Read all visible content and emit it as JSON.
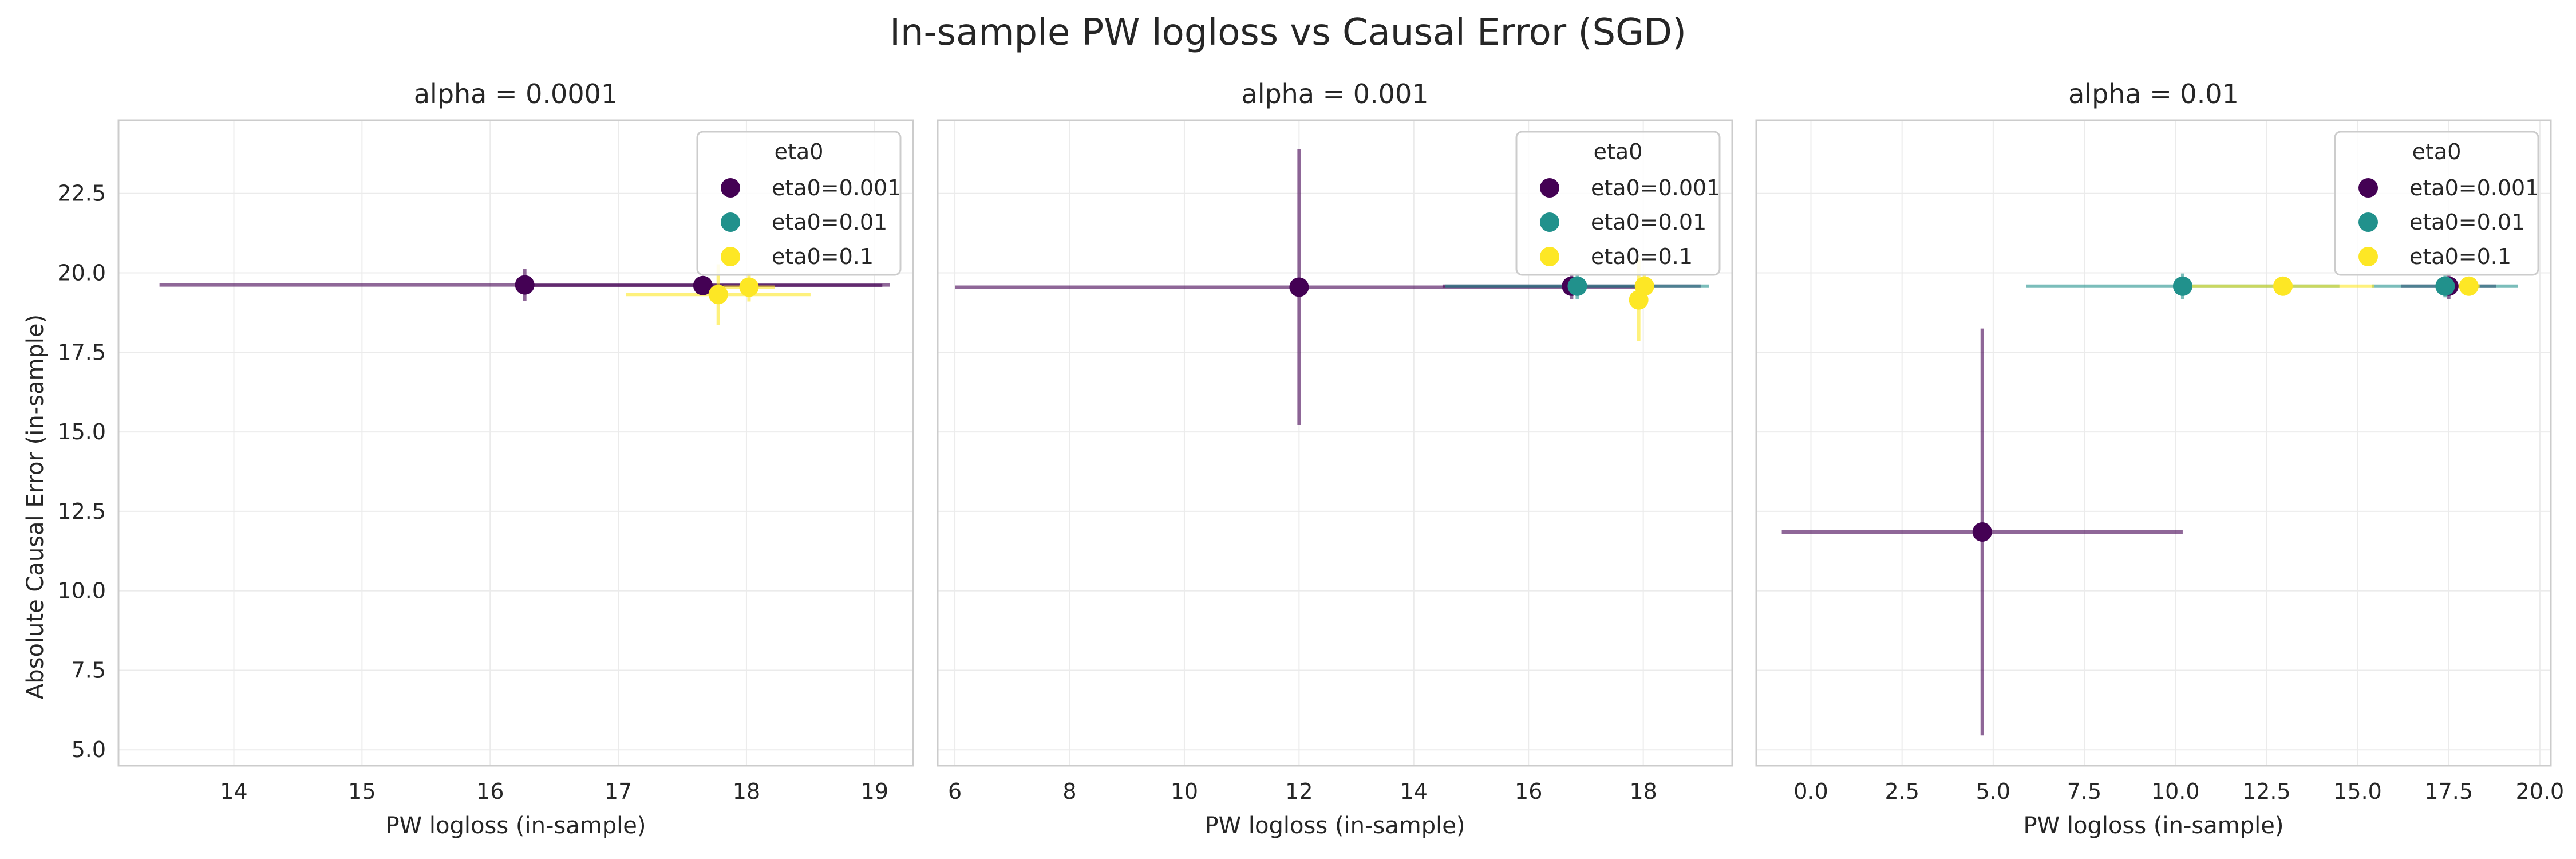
{
  "figure": {
    "title": "In-sample PW logloss vs Causal Error (SGD)",
    "ylabel": "Absolute Causal Error (in-sample)"
  },
  "colors": {
    "eta0=0.001": "#440154",
    "eta0=0.01": "#21918c",
    "eta0=0.1": "#fde725",
    "grid": "#ebebeb",
    "spine": "#cccccc"
  },
  "chart_data": [
    {
      "type": "scatter",
      "title": "alpha = 0.0001",
      "xlabel": "PW logloss (in-sample)",
      "ylabel": "Absolute Causal Error (in-sample)",
      "xlim": [
        13.1,
        19.3
      ],
      "ylim": [
        4.5,
        24.8
      ],
      "xticks": [
        14,
        15,
        16,
        17,
        18,
        19
      ],
      "xtick_labels": [
        "14",
        "15",
        "16",
        "17",
        "18",
        "19"
      ],
      "yticks": [
        5.0,
        7.5,
        10.0,
        12.5,
        15.0,
        17.5,
        20.0,
        22.5
      ],
      "ytick_labels": [
        "5.0",
        "7.5",
        "10.0",
        "12.5",
        "15.0",
        "17.5",
        "20.0",
        "22.5"
      ],
      "grid": true,
      "legend": {
        "title": "eta0",
        "position": "top-right"
      },
      "series": [
        {
          "name": "eta0=0.001",
          "points": [
            {
              "x": 16.27,
              "y": 19.62,
              "xerr": 2.85,
              "yerr": 0.5
            },
            {
              "x": 17.66,
              "y": 19.6,
              "xerr": 1.4,
              "yerr": 0.3
            }
          ]
        },
        {
          "name": "eta0=0.01",
          "points": []
        },
        {
          "name": "eta0=0.1",
          "points": [
            {
              "x": 17.78,
              "y": 19.32,
              "xerr": 0.72,
              "yerr": 0.95
            },
            {
              "x": 18.02,
              "y": 19.55,
              "xerr": 0.2,
              "yerr": 0.45
            }
          ]
        }
      ]
    },
    {
      "type": "scatter",
      "title": "alpha = 0.001",
      "xlabel": "PW logloss (in-sample)",
      "ylabel": "",
      "xlim": [
        5.7,
        19.55
      ],
      "ylim": [
        4.5,
        24.8
      ],
      "xticks": [
        6,
        8,
        10,
        12,
        14,
        16,
        18
      ],
      "xtick_labels": [
        "6",
        "8",
        "10",
        "12",
        "14",
        "16",
        "18"
      ],
      "yticks": [
        5.0,
        7.5,
        10.0,
        12.5,
        15.0,
        17.5,
        20.0,
        22.5
      ],
      "grid": true,
      "legend": {
        "title": "eta0",
        "position": "top-right"
      },
      "series": [
        {
          "name": "eta0=0.001",
          "points": [
            {
              "x": 12.0,
              "y": 19.55,
              "xerr": 6.0,
              "yerr": 4.35
            },
            {
              "x": 16.75,
              "y": 19.58,
              "xerr": 2.25,
              "yerr": 0.4
            }
          ]
        },
        {
          "name": "eta0=0.01",
          "points": [
            {
              "x": 16.85,
              "y": 19.58,
              "xerr": 2.3,
              "yerr": 0.4
            }
          ]
        },
        {
          "name": "eta0=0.1",
          "points": [
            {
              "x": 17.92,
              "y": 19.15,
              "xerr": 0.12,
              "yerr": 1.3
            },
            {
              "x": 18.02,
              "y": 19.58,
              "xerr": 0.1,
              "yerr": 0.4
            }
          ]
        }
      ]
    },
    {
      "type": "scatter",
      "title": "alpha = 0.01",
      "xlabel": "PW logloss (in-sample)",
      "ylabel": "",
      "xlim": [
        -1.5,
        20.3
      ],
      "ylim": [
        4.5,
        24.8
      ],
      "xticks": [
        0.0,
        2.5,
        5.0,
        7.5,
        10.0,
        12.5,
        15.0,
        17.5,
        20.0
      ],
      "xtick_labels": [
        "0.0",
        "2.5",
        "5.0",
        "7.5",
        "10.0",
        "12.5",
        "15.0",
        "17.5",
        "20.0"
      ],
      "yticks": [
        5.0,
        7.5,
        10.0,
        12.5,
        15.0,
        17.5,
        20.0,
        22.5
      ],
      "grid": true,
      "legend": {
        "title": "eta0",
        "position": "top-right"
      },
      "series": [
        {
          "name": "eta0=0.001",
          "points": [
            {
              "x": 4.7,
              "y": 11.85,
              "xerr": 5.5,
              "yerr": 6.4
            },
            {
              "x": 17.5,
              "y": 19.58,
              "xerr": 1.3,
              "yerr": 0.4
            }
          ]
        },
        {
          "name": "eta0=0.01",
          "points": [
            {
              "x": 10.2,
              "y": 19.58,
              "xerr": 4.3,
              "yerr": 0.4
            },
            {
              "x": 17.4,
              "y": 19.58,
              "xerr": 2.0,
              "yerr": 0.35
            }
          ]
        },
        {
          "name": "eta0=0.1",
          "points": [
            {
              "x": 12.95,
              "y": 19.58,
              "xerr": 2.5,
              "yerr": 0.3
            },
            {
              "x": 18.05,
              "y": 19.58,
              "xerr": 0.3,
              "yerr": 0.3
            }
          ]
        }
      ]
    }
  ]
}
